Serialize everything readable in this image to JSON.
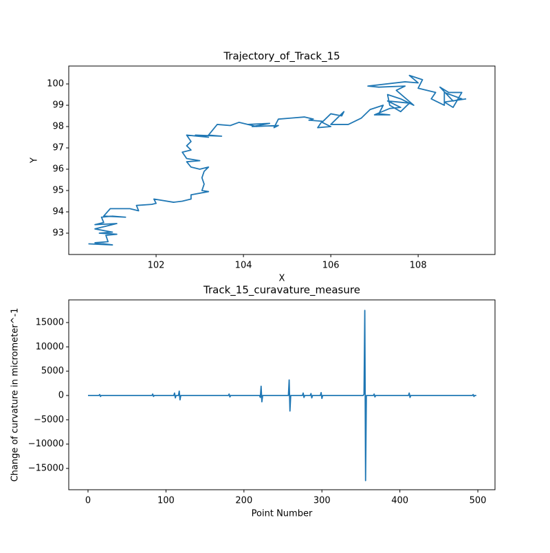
{
  "chart_data": [
    {
      "type": "line",
      "title": "Trajectory_of_Track_15",
      "x_label": "X",
      "y_label": "Y",
      "xlim": [
        100.0,
        109.76
      ],
      "ylim": [
        92.0,
        100.84
      ],
      "xticks": [
        102,
        104,
        106,
        108
      ],
      "yticks": [
        93,
        94,
        95,
        96,
        97,
        98,
        99,
        100
      ],
      "series": [
        {
          "color": "#1f77b4",
          "x": [
            100.45,
            101.0,
            100.6,
            100.9,
            100.85,
            101.1,
            100.7,
            101.0,
            100.6,
            100.9,
            101.1,
            100.6,
            100.8,
            100.75,
            101.0,
            101.3,
            100.8,
            100.95,
            101.4,
            101.6,
            101.55,
            101.9,
            102.0,
            101.95,
            102.4,
            102.6,
            102.8,
            102.8,
            103.2,
            103.05,
            103.1,
            103.05,
            103.1,
            103.2,
            103.0,
            102.8,
            102.7,
            103.0,
            102.7,
            102.6,
            102.8,
            102.7,
            102.8,
            102.7,
            103.2,
            102.9,
            103.5,
            103.2,
            103.4,
            103.7,
            103.9,
            104.3,
            104.1,
            104.6,
            104.2,
            104.8,
            104.7,
            104.8,
            105.1,
            105.4,
            105.6,
            105.5,
            105.8,
            105.7,
            106.0,
            105.8,
            106.0,
            106.25,
            106.3,
            106.0,
            106.4,
            106.7,
            106.9,
            107.2,
            107.1,
            107.35,
            107.0,
            107.35,
            107.6,
            107.3,
            107.8,
            107.6,
            107.35,
            107.3,
            107.6,
            107.9,
            107.5,
            107.7,
            107.1,
            106.85,
            107.7,
            108.0,
            107.8,
            108.1,
            108.0,
            108.4,
            108.3,
            108.6,
            108.6,
            109.0,
            108.8,
            108.5,
            108.7,
            109.0,
            108.8,
            108.6,
            109.1
          ],
          "values": [
            92.5,
            92.45,
            92.55,
            92.6,
            92.9,
            92.95,
            93.0,
            93.05,
            93.2,
            93.35,
            93.45,
            93.4,
            93.5,
            93.75,
            93.8,
            93.75,
            93.8,
            94.15,
            94.15,
            94.05,
            94.3,
            94.35,
            94.4,
            94.6,
            94.45,
            94.5,
            94.6,
            94.8,
            94.95,
            95.0,
            95.3,
            95.6,
            95.9,
            96.1,
            96.0,
            96.1,
            96.35,
            96.4,
            96.5,
            96.8,
            96.9,
            97.1,
            97.3,
            97.6,
            97.5,
            97.6,
            97.55,
            97.6,
            98.1,
            98.05,
            98.2,
            98.0,
            98.1,
            98.15,
            98.0,
            98.05,
            97.95,
            98.35,
            98.4,
            98.45,
            98.35,
            98.3,
            98.25,
            97.95,
            98.0,
            98.2,
            98.6,
            98.5,
            98.7,
            98.1,
            98.1,
            98.4,
            98.8,
            99.0,
            98.6,
            98.55,
            98.55,
            98.85,
            98.9,
            99.2,
            99.1,
            98.7,
            99.0,
            99.5,
            99.3,
            99.0,
            99.7,
            99.9,
            99.85,
            99.9,
            100.1,
            100.05,
            100.4,
            100.2,
            99.8,
            99.6,
            99.3,
            99.0,
            99.6,
            99.3,
            99.2,
            99.85,
            99.6,
            99.6,
            98.9,
            99.15,
            99.3
          ]
        }
      ]
    },
    {
      "type": "line",
      "title": "Track_15_curavature_measure",
      "x_label": "Point Number",
      "y_label": "Change of curvature in micrometer^-1",
      "xlim": [
        -24.7,
        522
      ],
      "ylim": [
        -19380,
        19660
      ],
      "xticks": [
        0,
        100,
        200,
        300,
        400,
        500
      ],
      "yticks": [
        {
          "value": -15000,
          "label": "−15000"
        },
        {
          "value": -10000,
          "label": "−10000"
        },
        {
          "value": -5000,
          "label": "−5000"
        },
        0,
        5000,
        10000,
        15000
      ],
      "series": [
        {
          "color": "#1f77b4",
          "x": [
            0,
            14,
            15,
            16,
            17,
            82,
            83,
            84,
            85,
            110,
            111,
            112,
            113,
            116,
            117,
            118,
            119,
            180,
            181,
            182,
            183,
            220,
            221,
            222,
            223,
            224,
            257,
            258,
            259,
            260,
            275,
            276,
            277,
            278,
            285,
            286,
            287,
            288,
            298,
            299,
            300,
            301,
            353,
            354,
            355,
            356,
            357,
            366,
            367,
            368,
            369,
            411,
            412,
            413,
            414,
            493,
            494,
            495,
            496,
            498
          ],
          "values": [
            0,
            0,
            200,
            -200,
            0,
            0,
            300,
            -200,
            0,
            0,
            500,
            -500,
            0,
            0,
            900,
            -900,
            0,
            0,
            300,
            -300,
            0,
            0,
            -400,
            1900,
            -1300,
            0,
            0,
            3200,
            -3200,
            0,
            0,
            500,
            -400,
            0,
            0,
            400,
            -500,
            0,
            0,
            600,
            -600,
            0,
            0,
            300,
            17500,
            -17500,
            0,
            0,
            300,
            -300,
            0,
            0,
            500,
            -400,
            0,
            0,
            200,
            -200,
            0,
            0
          ]
        }
      ]
    }
  ]
}
